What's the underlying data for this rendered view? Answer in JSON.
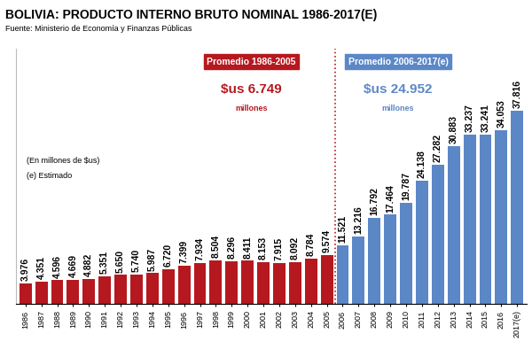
{
  "chart_data": {
    "type": "bar",
    "title": "BOLIVIA: PRODUCTO INTERNO BRUTO NOMINAL 1986-2017(E)",
    "subtitle": "Fuente: Ministerio de Economía y Finanzas Públicas",
    "categories": [
      "1986",
      "1987",
      "1988",
      "1989",
      "1990",
      "1991",
      "1992",
      "1993",
      "1994",
      "1995",
      "1996",
      "1997",
      "1998",
      "1999",
      "2000",
      "2001",
      "2002",
      "2003",
      "2004",
      "2005",
      "2006",
      "2007",
      "2008",
      "2009",
      "2010",
      "2011",
      "2012",
      "2013",
      "2014",
      "2015",
      "2016",
      "2017(e)"
    ],
    "values": [
      3976,
      4351,
      4596,
      4669,
      4882,
      5351,
      5650,
      5740,
      5987,
      6720,
      7399,
      7934,
      8504,
      8296,
      8411,
      8153,
      7915,
      8092,
      8784,
      9574,
      11521,
      13216,
      16792,
      17464,
      19787,
      24138,
      27282,
      30883,
      33237,
      33241,
      34053,
      37816
    ],
    "value_labels": [
      "3.976",
      "4.351",
      "4.596",
      "4.669",
      "4.882",
      "5.351",
      "5.650",
      "5.740",
      "5.987",
      "6.720",
      "7.399",
      "7.934",
      "8.504",
      "8.296",
      "8.411",
      "8.153",
      "7.915",
      "8.092",
      "8.784",
      "9.574",
      "11.521",
      "13.216",
      "16.792",
      "17.464",
      "19.787",
      "24.138",
      "27.282",
      "30.883",
      "33.237",
      "33.241",
      "34.053",
      "37.816"
    ],
    "colors": [
      "#b5191f",
      "#b5191f",
      "#b5191f",
      "#b5191f",
      "#b5191f",
      "#b5191f",
      "#b5191f",
      "#b5191f",
      "#b5191f",
      "#b5191f",
      "#b5191f",
      "#b5191f",
      "#b5191f",
      "#b5191f",
      "#b5191f",
      "#b5191f",
      "#b5191f",
      "#b5191f",
      "#b5191f",
      "#b5191f",
      "#5b87c7",
      "#5b87c7",
      "#5b87c7",
      "#5b87c7",
      "#5b87c7",
      "#5b87c7",
      "#5b87c7",
      "#5b87c7",
      "#5b87c7",
      "#5b87c7",
      "#5b87c7",
      "#5b87c7"
    ],
    "annotations": [
      "Promedio 1986-2005",
      "$us 6.749",
      "millones",
      "Promedio 2006-2017(e)",
      "$us 24.952",
      "millones",
      "(En millones de $us)",
      "(e) Estimado"
    ],
    "ylim": [
      0,
      50000
    ],
    "data_labels": true,
    "tick_labels": "x",
    "grid": false
  }
}
